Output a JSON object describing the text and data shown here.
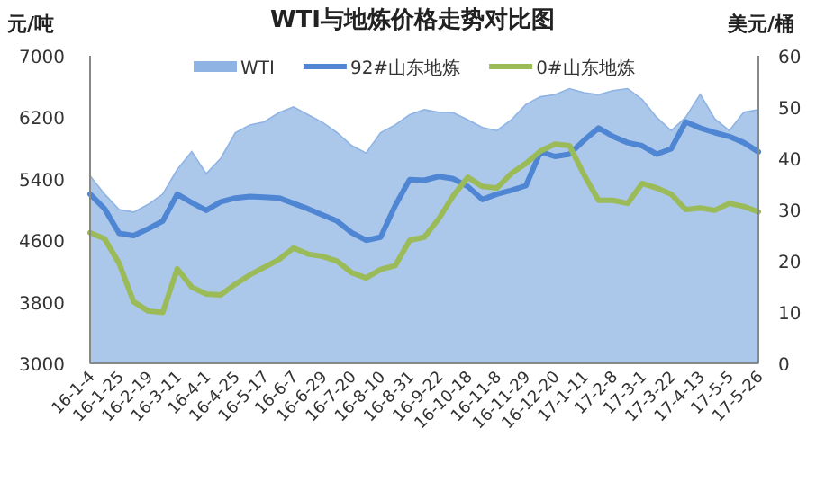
{
  "chart_data": {
    "type": "line",
    "title": "WTI与地炼价格走势对比图",
    "ylabel": "元/吨",
    "y2label": "美元/桶",
    "categories": [
      "16-1-4",
      null,
      "16-1-25",
      null,
      "16-2-19",
      null,
      "16-3-11",
      null,
      "16-4-1",
      null,
      "16-4-25",
      null,
      "16-5-17",
      null,
      "16-6-7",
      null,
      "16-6-29",
      null,
      "16-7-20",
      null,
      "16-8-10",
      null,
      "16-8-31",
      null,
      "16-9-22",
      null,
      "16-10-18",
      null,
      "16-11-8",
      null,
      "16-11-29",
      null,
      "16-12-20",
      null,
      "17-1-11",
      null,
      "17-2-8",
      null,
      "17-3-1",
      null,
      "17-3-22",
      null,
      "17-4-13",
      null,
      "17-5-5",
      null,
      "17-5-26"
    ],
    "series": [
      {
        "name": "WTI",
        "type": "area",
        "axis": "y2",
        "color": "#8fb4e3",
        "values": [
          36.6,
          33.0,
          30.0,
          29.5,
          31.0,
          33.0,
          37.8,
          41.3,
          37.0,
          40.0,
          45.0,
          46.5,
          47.1,
          48.9,
          50.0,
          48.5,
          47.0,
          45.0,
          42.5,
          41.0,
          45.0,
          46.5,
          48.5,
          49.5,
          49.0,
          48.9,
          47.5,
          46.0,
          45.4,
          47.5,
          50.5,
          52.0,
          52.4,
          53.6,
          52.8,
          52.4,
          53.2,
          53.6,
          51.5,
          48.0,
          45.4,
          48.0,
          52.5,
          47.7,
          45.4,
          49.0,
          49.5
        ]
      },
      {
        "name": "92#山东地炼",
        "color": "#4f86d4",
        "values": [
          5200,
          5010,
          4690,
          4660,
          4750,
          4850,
          5200,
          5090,
          4990,
          5100,
          5150,
          5170,
          5160,
          5150,
          5080,
          5010,
          4930,
          4850,
          4700,
          4600,
          4640,
          5050,
          5390,
          5380,
          5430,
          5400,
          5300,
          5130,
          5200,
          5250,
          5310,
          5750,
          5690,
          5720,
          5900,
          6060,
          5950,
          5870,
          5830,
          5720,
          5790,
          6140,
          6060,
          6000,
          5950,
          5870,
          5750
        ]
      },
      {
        "name": "0#山东地炼",
        "color": "#9bbb59",
        "values": [
          4700,
          4620,
          4300,
          3800,
          3680,
          3660,
          4230,
          3990,
          3900,
          3890,
          4030,
          4150,
          4250,
          4350,
          4500,
          4420,
          4390,
          4330,
          4180,
          4110,
          4220,
          4270,
          4600,
          4640,
          4880,
          5180,
          5420,
          5300,
          5280,
          5470,
          5600,
          5760,
          5850,
          5830,
          5450,
          5120,
          5120,
          5080,
          5340,
          5280,
          5200,
          5000,
          5020,
          4990,
          5080,
          5040,
          4970
        ]
      }
    ],
    "ylim": [
      3000,
      7000
    ],
    "yticks": [
      3000,
      3800,
      4600,
      5400,
      6200,
      7000
    ],
    "y2lim": [
      0,
      60
    ],
    "y2ticks": [
      0,
      10,
      20,
      30,
      40,
      50,
      60
    ],
    "legend": "top",
    "grid": false
  }
}
